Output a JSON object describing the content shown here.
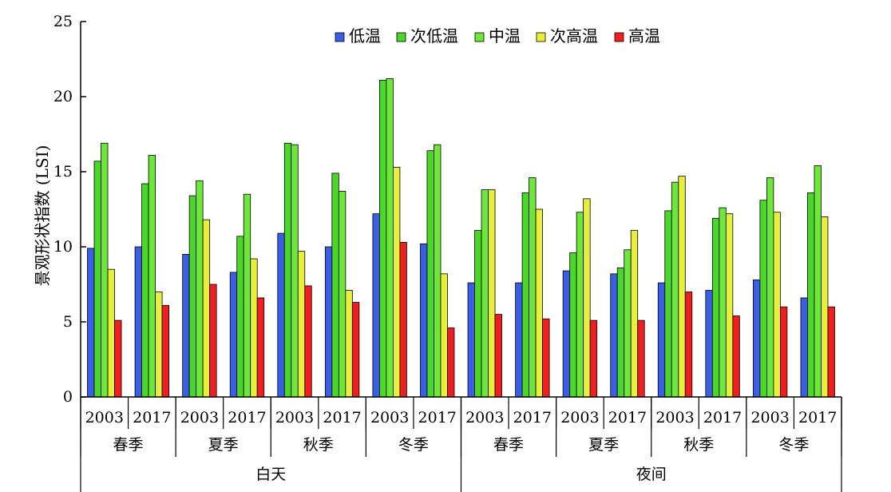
{
  "chart_data": {
    "type": "bar",
    "title": "",
    "ylabel": "景观形状指数 (LSI)",
    "ylim": [
      0,
      25
    ],
    "yticks": [
      0,
      5,
      10,
      15,
      20,
      25
    ],
    "legend_position": "top-center",
    "series": [
      {
        "name": "低温",
        "color": "#3a5ee6"
      },
      {
        "name": "次低温",
        "color": "#4bd62a"
      },
      {
        "name": "中温",
        "color": "#6ee63a"
      },
      {
        "name": "次高温",
        "color": "#e8ef3a"
      },
      {
        "name": "高温",
        "color": "#f01e1e"
      }
    ],
    "year_labels": [
      "2003",
      "2017",
      "2003",
      "2017",
      "2003",
      "2017",
      "2003",
      "2017",
      "2003",
      "2017",
      "2003",
      "2017",
      "2003",
      "2017",
      "2003",
      "2017"
    ],
    "season_labels": [
      "春季",
      "夏季",
      "秋季",
      "冬季",
      "春季",
      "夏季",
      "秋季",
      "冬季"
    ],
    "period_labels": [
      "白天",
      "夜间"
    ],
    "groups_values": [
      [
        9.9,
        15.7,
        16.9,
        8.5,
        5.1
      ],
      [
        10.0,
        14.2,
        16.1,
        7.0,
        6.1
      ],
      [
        9.5,
        13.4,
        14.4,
        11.8,
        7.5
      ],
      [
        8.3,
        10.7,
        13.5,
        9.2,
        6.6
      ],
      [
        10.9,
        16.9,
        16.8,
        9.7,
        7.4
      ],
      [
        10.0,
        14.9,
        13.7,
        7.1,
        6.3
      ],
      [
        12.2,
        21.1,
        21.2,
        15.3,
        10.3
      ],
      [
        10.2,
        16.4,
        16.8,
        8.2,
        4.6
      ],
      [
        7.6,
        11.1,
        13.8,
        13.8,
        5.5
      ],
      [
        7.6,
        13.6,
        14.6,
        12.5,
        5.2
      ],
      [
        8.4,
        9.6,
        12.3,
        13.2,
        5.1
      ],
      [
        8.2,
        8.6,
        9.8,
        11.1,
        5.1
      ],
      [
        7.6,
        12.4,
        14.3,
        14.7,
        7.0
      ],
      [
        7.1,
        11.9,
        12.6,
        12.2,
        5.4
      ],
      [
        7.8,
        13.1,
        14.6,
        12.3,
        6.0
      ],
      [
        6.6,
        13.6,
        15.4,
        12.0,
        6.0
      ]
    ]
  }
}
